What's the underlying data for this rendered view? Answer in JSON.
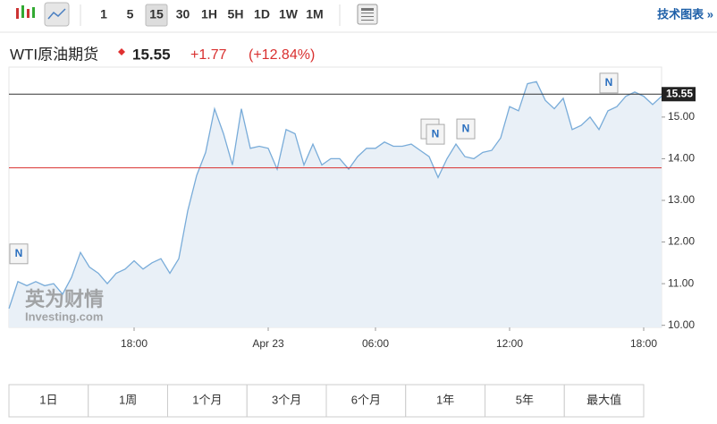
{
  "toolbar": {
    "timeframes": [
      "1",
      "5",
      "15",
      "30",
      "1H",
      "5H",
      "1D",
      "1W",
      "1M"
    ],
    "active": "15",
    "link": "技术图表 »"
  },
  "header": {
    "title": "WTI原油期货",
    "price": "15.55",
    "change": "+1.77",
    "change_percent": "(+12.84%)"
  },
  "range_buttons": [
    "1日",
    "1周",
    "1个月",
    "3个月",
    "6个月",
    "1年",
    "5年",
    "最大值"
  ],
  "watermark": [
    "英为财情",
    "Investing.com"
  ],
  "chart_data": {
    "type": "line",
    "categories": [
      null,
      null,
      null,
      null,
      null,
      null,
      null,
      null,
      null,
      null,
      null,
      null,
      null,
      null,
      "18:00",
      null,
      null,
      null,
      null,
      null,
      null,
      null,
      null,
      null,
      null,
      null,
      null,
      null,
      null,
      "Apr 23",
      null,
      null,
      null,
      null,
      null,
      null,
      null,
      null,
      null,
      null,
      null,
      "06:00",
      null,
      null,
      null,
      null,
      null,
      null,
      null,
      null,
      null,
      null,
      null,
      null,
      null,
      null,
      "12:00",
      null,
      null,
      null,
      null,
      null,
      null,
      null,
      null,
      null,
      null,
      null,
      null,
      null,
      null,
      "18:00",
      null,
      null
    ],
    "series": [
      {
        "name": "WTI原油期货",
        "color": "#79acd9",
        "values": [
          10.4,
          11.05,
          10.95,
          11.05,
          10.95,
          11.0,
          10.75,
          11.15,
          11.75,
          11.4,
          11.25,
          11.0,
          11.25,
          11.35,
          11.55,
          11.35,
          11.5,
          11.6,
          11.25,
          11.6,
          12.75,
          13.6,
          14.15,
          15.2,
          14.6,
          13.85,
          15.2,
          14.25,
          14.3,
          14.25,
          13.75,
          14.7,
          14.6,
          13.85,
          14.35,
          13.85,
          14.0,
          14.0,
          13.75,
          14.05,
          14.25,
          14.25,
          14.4,
          14.3,
          14.3,
          14.35,
          14.2,
          14.05,
          13.55,
          14.0,
          14.35,
          14.05,
          14.0,
          14.15,
          14.2,
          14.5,
          15.25,
          15.15,
          15.8,
          15.85,
          15.4,
          15.2,
          15.45,
          14.7,
          14.8,
          15.0,
          14.7,
          15.15,
          15.25,
          15.5,
          15.6,
          15.5,
          15.3,
          15.5
        ]
      }
    ],
    "ylim": [
      9.95,
      16.2
    ],
    "yticks": [
      {
        "value": 10,
        "label": "10.00"
      },
      {
        "value": 11,
        "label": "11.00"
      },
      {
        "value": 12,
        "label": "12.00"
      },
      {
        "value": 13,
        "label": "13.00"
      },
      {
        "value": 14,
        "label": "14.00"
      },
      {
        "value": 15,
        "label": "15.00"
      }
    ],
    "last_price": 15.55,
    "last_price_color": "#333333",
    "previous_close": 13.78,
    "previous_close_color": "#d9302f",
    "annotations": [
      {
        "index": 1,
        "text": "N"
      },
      {
        "index": 47,
        "text": "N"
      },
      {
        "index": 47,
        "text": "N"
      },
      {
        "index": 51,
        "text": "N"
      },
      {
        "index": 67,
        "text": "N"
      }
    ],
    "fill": "#e9f0f7"
  }
}
